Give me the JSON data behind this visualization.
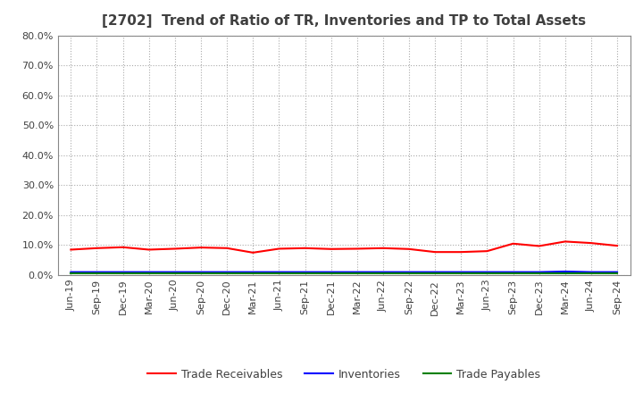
{
  "title": "[2702]  Trend of Ratio of TR, Inventories and TP to Total Assets",
  "x_labels": [
    "Jun-19",
    "Sep-19",
    "Dec-19",
    "Mar-20",
    "Jun-20",
    "Sep-20",
    "Dec-20",
    "Mar-21",
    "Jun-21",
    "Sep-21",
    "Dec-21",
    "Mar-22",
    "Jun-22",
    "Sep-22",
    "Dec-22",
    "Mar-23",
    "Jun-23",
    "Sep-23",
    "Dec-23",
    "Mar-24",
    "Jun-24",
    "Sep-24"
  ],
  "trade_receivables": [
    0.085,
    0.09,
    0.093,
    0.085,
    0.088,
    0.092,
    0.09,
    0.075,
    0.088,
    0.09,
    0.087,
    0.088,
    0.09,
    0.087,
    0.077,
    0.077,
    0.08,
    0.105,
    0.097,
    0.112,
    0.107,
    0.098
  ],
  "inventories": [
    0.01,
    0.01,
    0.01,
    0.01,
    0.01,
    0.01,
    0.01,
    0.01,
    0.01,
    0.01,
    0.01,
    0.01,
    0.01,
    0.01,
    0.01,
    0.01,
    0.01,
    0.01,
    0.01,
    0.012,
    0.01,
    0.01
  ],
  "trade_payables": [
    0.005,
    0.005,
    0.005,
    0.005,
    0.005,
    0.005,
    0.005,
    0.005,
    0.005,
    0.005,
    0.005,
    0.005,
    0.005,
    0.005,
    0.005,
    0.005,
    0.005,
    0.005,
    0.005,
    0.005,
    0.005,
    0.005
  ],
  "color_tr": "#FF0000",
  "color_inv": "#0000FF",
  "color_tp": "#008000",
  "ylim": [
    0.0,
    0.8
  ],
  "yticks": [
    0.0,
    0.1,
    0.2,
    0.3,
    0.4,
    0.5,
    0.6,
    0.7,
    0.8
  ],
  "background_color": "#FFFFFF",
  "plot_bg_color": "#FFFFFF",
  "grid_color": "#AAAAAA",
  "title_color": "#404040",
  "tick_color": "#404040",
  "spine_color": "#888888",
  "legend_labels": [
    "Trade Receivables",
    "Inventories",
    "Trade Payables"
  ],
  "title_fontsize": 11,
  "tick_fontsize": 8,
  "legend_fontsize": 9
}
